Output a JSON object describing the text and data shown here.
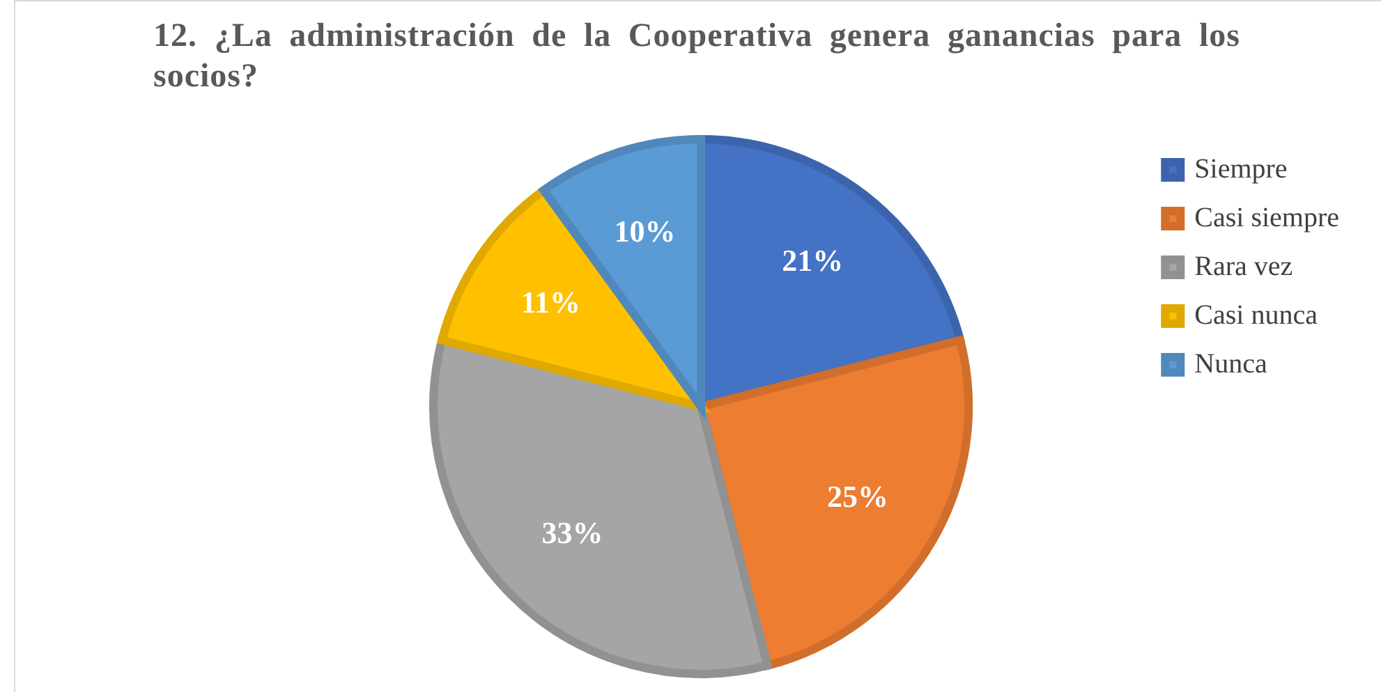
{
  "chart_data": {
    "type": "pie",
    "title": "12. ¿La administración de la Cooperativa genera ganancias para los socios?",
    "categories": [
      "Siempre",
      "Casi siempre",
      "Rara vez",
      "Casi nunca",
      "Nunca"
    ],
    "values": [
      21,
      25,
      33,
      11,
      10
    ],
    "value_labels": [
      "21%",
      "25%",
      "33%",
      "11%",
      "10%"
    ],
    "colors": [
      "#4472c4",
      "#ed7d31",
      "#a5a5a5",
      "#ffc000",
      "#5b9bd5"
    ],
    "legend": "right"
  }
}
